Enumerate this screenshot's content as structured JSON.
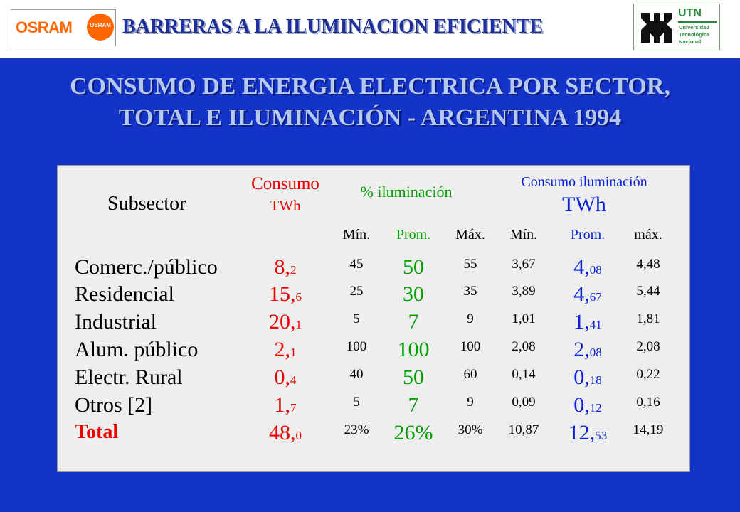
{
  "header": {
    "title": "BARRERAS A LA ILUMINACION EFICIENTE",
    "osram_logo": "OSRAM",
    "osram_bulb_text": "OSRAM",
    "utn_logo": {
      "name": "UTN",
      "line1": "Universidad",
      "line2": "Tecnológica",
      "line3": "Nacional"
    }
  },
  "slide": {
    "title_line1": "CONSUMO DE ENERGIA ELECTRICA POR SECTOR,",
    "title_line2": "TOTAL E ILUMINACIÓN  - ARGENTINA 1994"
  },
  "table": {
    "headers": {
      "subsector": "Subsector",
      "consumo_line1": "Consumo",
      "consumo_line2": "TWh",
      "pct_group": "% iluminación",
      "cons_ilum_line1": "Consumo iluminación",
      "cons_ilum_line2": "TWh",
      "min1": "Mín.",
      "prom1": "Prom.",
      "max1": "Máx.",
      "min2": "Mín.",
      "prom2": "Prom.",
      "max2": "máx."
    },
    "rows": [
      {
        "subsector": "Comerc./público",
        "consumo_int": "8,",
        "consumo_dec": "2",
        "pct_min": "45",
        "pct_prom": "50",
        "pct_max": "55",
        "ilum_min": "3,67",
        "ilum_prom_int": "4,",
        "ilum_prom_dec": "08",
        "ilum_max": "4,48"
      },
      {
        "subsector": "Residencial",
        "consumo_int": "15,",
        "consumo_dec": "6",
        "pct_min": "25",
        "pct_prom": "30",
        "pct_max": "35",
        "ilum_min": "3,89",
        "ilum_prom_int": "4,",
        "ilum_prom_dec": "67",
        "ilum_max": "5,44"
      },
      {
        "subsector": "Industrial",
        "consumo_int": "20,",
        "consumo_dec": "1",
        "pct_min": "5",
        "pct_prom": "7",
        "pct_max": "9",
        "ilum_min": "1,01",
        "ilum_prom_int": "1,",
        "ilum_prom_dec": "41",
        "ilum_max": "1,81"
      },
      {
        "subsector": "Alum. público",
        "consumo_int": "2,",
        "consumo_dec": "1",
        "pct_min": "100",
        "pct_prom": "100",
        "pct_max": "100",
        "ilum_min": "2,08",
        "ilum_prom_int": "2,",
        "ilum_prom_dec": "08",
        "ilum_max": "2,08"
      },
      {
        "subsector": "Electr. Rural",
        "consumo_int": "0,",
        "consumo_dec": "4",
        "pct_min": "40",
        "pct_prom": "50",
        "pct_max": "60",
        "ilum_min": "0,14",
        "ilum_prom_int": "0,",
        "ilum_prom_dec": "18",
        "ilum_max": "0,22"
      },
      {
        "subsector": "Otros [2]",
        "consumo_int": "1,",
        "consumo_dec": "7",
        "pct_min": "5",
        "pct_prom": "7",
        "pct_max": "9",
        "ilum_min": "0,09",
        "ilum_prom_int": "0,",
        "ilum_prom_dec": "12",
        "ilum_max": "0,16"
      },
      {
        "subsector": "Total",
        "consumo_int": "48,",
        "consumo_dec": "0",
        "pct_min": "23%",
        "pct_prom": "26%",
        "pct_max": "30%",
        "ilum_min": "10,87",
        "ilum_prom_int": "12,",
        "ilum_prom_dec": "53",
        "ilum_max": "14,19"
      }
    ]
  },
  "colors": {
    "background": "#1433c8",
    "consumo": "#ee0000",
    "promedio": "#00a000",
    "iluminacion": "#0a23d8"
  }
}
